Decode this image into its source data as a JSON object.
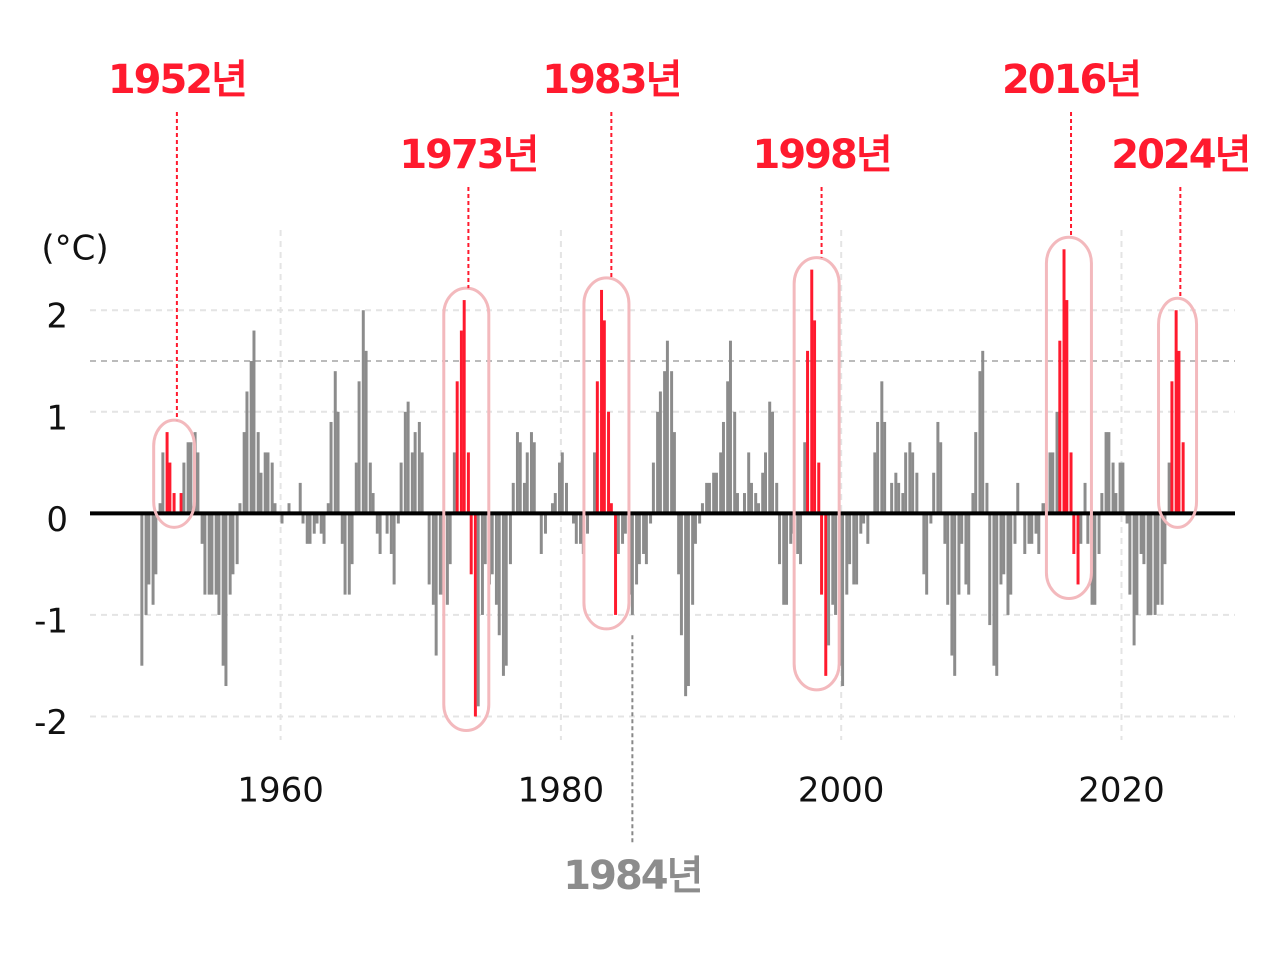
{
  "chart_data": {
    "type": "bar",
    "unit_label": "(°C)",
    "x": [
      1950.1,
      1950.4,
      1950.6,
      1950.9,
      1951.1,
      1951.4,
      1951.6,
      1951.9,
      1952.1,
      1952.4,
      1952.6,
      1952.9,
      1953.1,
      1953.4,
      1953.6,
      1953.9,
      1954.1,
      1954.4,
      1954.6,
      1954.9,
      1955.1,
      1955.4,
      1955.6,
      1955.9,
      1956.1,
      1956.4,
      1956.6,
      1956.9,
      1957.1,
      1957.4,
      1957.6,
      1957.9,
      1958.1,
      1958.4,
      1958.6,
      1958.9,
      1959.1,
      1959.4,
      1959.6,
      1959.9,
      1960.1,
      1960.4,
      1960.6,
      1960.9,
      1961.1,
      1961.4,
      1961.6,
      1961.9,
      1962.1,
      1962.4,
      1962.6,
      1962.9,
      1963.1,
      1963.4,
      1963.6,
      1963.9,
      1964.1,
      1964.4,
      1964.6,
      1964.9,
      1965.1,
      1965.4,
      1965.6,
      1965.9,
      1966.1,
      1966.4,
      1966.6,
      1966.9,
      1967.1,
      1967.4,
      1967.6,
      1967.9,
      1968.1,
      1968.4,
      1968.6,
      1968.9,
      1969.1,
      1969.4,
      1969.6,
      1969.9,
      1970.1,
      1970.4,
      1970.6,
      1970.9,
      1971.1,
      1971.4,
      1971.6,
      1971.9,
      1972.1,
      1972.4,
      1972.6,
      1972.9,
      1973.1,
      1973.4,
      1973.6,
      1973.9,
      1974.1,
      1974.4,
      1974.6,
      1974.9,
      1975.1,
      1975.4,
      1975.6,
      1975.9,
      1976.1,
      1976.4,
      1976.6,
      1976.9,
      1977.1,
      1977.4,
      1977.6,
      1977.9,
      1978.1,
      1978.4,
      1978.6,
      1978.9,
      1979.1,
      1979.4,
      1979.6,
      1979.9,
      1980.1,
      1980.4,
      1980.6,
      1980.9,
      1981.1,
      1981.4,
      1981.6,
      1981.9,
      1982.1,
      1982.4,
      1982.6,
      1982.9,
      1983.1,
      1983.4,
      1983.6,
      1983.9,
      1984.1,
      1984.4,
      1984.6,
      1984.9,
      1985.1,
      1985.4,
      1985.6,
      1985.9,
      1986.1,
      1986.4,
      1986.6,
      1986.9,
      1987.1,
      1987.4,
      1987.6,
      1987.9,
      1988.1,
      1988.4,
      1988.6,
      1988.9,
      1989.1,
      1989.4,
      1989.6,
      1989.9,
      1990.1,
      1990.4,
      1990.6,
      1990.9,
      1991.1,
      1991.4,
      1991.6,
      1991.9,
      1992.1,
      1992.4,
      1992.6,
      1992.9,
      1993.1,
      1993.4,
      1993.6,
      1993.9,
      1994.1,
      1994.4,
      1994.6,
      1994.9,
      1995.1,
      1995.4,
      1995.6,
      1995.9,
      1996.1,
      1996.4,
      1996.6,
      1996.9,
      1997.1,
      1997.4,
      1997.6,
      1997.9,
      1998.1,
      1998.4,
      1998.6,
      1998.9,
      1999.1,
      1999.4,
      1999.6,
      1999.9,
      2000.1,
      2000.4,
      2000.6,
      2000.9,
      2001.1,
      2001.4,
      2001.6,
      2001.9,
      2002.1,
      2002.4,
      2002.6,
      2002.9,
      2003.1,
      2003.4,
      2003.6,
      2003.9,
      2004.1,
      2004.4,
      2004.6,
      2004.9,
      2005.1,
      2005.4,
      2005.6,
      2005.9,
      2006.1,
      2006.4,
      2006.6,
      2006.9,
      2007.1,
      2007.4,
      2007.6,
      2007.9,
      2008.1,
      2008.4,
      2008.6,
      2008.9,
      2009.1,
      2009.4,
      2009.6,
      2009.9,
      2010.1,
      2010.4,
      2010.6,
      2010.9,
      2011.1,
      2011.4,
      2011.6,
      2011.9,
      2012.1,
      2012.4,
      2012.6,
      2012.9,
      2013.1,
      2013.4,
      2013.6,
      2013.9,
      2014.1,
      2014.4,
      2014.6,
      2014.9,
      2015.1,
      2015.4,
      2015.6,
      2015.9,
      2016.1,
      2016.4,
      2016.6,
      2016.9,
      2017.1,
      2017.4,
      2017.6,
      2017.9,
      2018.1,
      2018.4,
      2018.6,
      2018.9,
      2019.1,
      2019.4,
      2019.6,
      2019.9,
      2020.1,
      2020.4,
      2020.6,
      2020.9,
      2021.1,
      2021.4,
      2021.6,
      2021.9,
      2022.1,
      2022.4,
      2022.6,
      2022.9,
      2023.1,
      2023.4,
      2023.6,
      2023.9,
      2024.1,
      2024.4
    ],
    "values": [
      -1.5,
      -1.0,
      -0.7,
      -0.9,
      -0.6,
      0.1,
      0.6,
      0.8,
      0.5,
      0.2,
      0.0,
      0.2,
      0.5,
      0.7,
      0.7,
      0.8,
      0.6,
      -0.3,
      -0.8,
      -0.8,
      -0.8,
      -0.8,
      -1.0,
      -1.5,
      -1.7,
      -0.8,
      -0.6,
      -0.5,
      0.1,
      0.8,
      1.2,
      1.5,
      1.8,
      0.8,
      0.4,
      0.6,
      0.6,
      0.5,
      0.1,
      0.0,
      -0.1,
      0.0,
      0.1,
      0.0,
      0.0,
      0.3,
      -0.1,
      -0.3,
      -0.3,
      -0.2,
      -0.1,
      -0.2,
      -0.3,
      0.1,
      0.9,
      1.4,
      1.0,
      -0.3,
      -0.8,
      -0.8,
      -0.5,
      0.5,
      1.3,
      2.0,
      1.6,
      0.5,
      0.2,
      -0.2,
      -0.4,
      0.0,
      -0.2,
      -0.4,
      -0.7,
      -0.1,
      0.5,
      1.0,
      1.1,
      0.6,
      0.8,
      0.9,
      0.6,
      0.0,
      -0.7,
      -0.9,
      -1.4,
      -0.8,
      -0.8,
      -0.9,
      -0.5,
      0.6,
      1.3,
      1.8,
      2.1,
      0.6,
      -0.6,
      -2.0,
      -1.9,
      -1.0,
      -0.5,
      -0.7,
      -0.6,
      -0.9,
      -1.2,
      -1.6,
      -1.5,
      -0.5,
      0.3,
      0.8,
      0.7,
      0.3,
      0.6,
      0.8,
      0.7,
      0.0,
      -0.4,
      -0.2,
      0.0,
      0.1,
      0.2,
      0.5,
      0.6,
      0.3,
      0.0,
      -0.1,
      -0.3,
      -0.3,
      -0.4,
      -0.2,
      0.0,
      0.6,
      1.3,
      2.2,
      1.9,
      1.0,
      0.1,
      -1.0,
      -0.4,
      -0.3,
      -0.2,
      -0.8,
      -1.0,
      -0.7,
      -0.5,
      -0.4,
      -0.5,
      -0.1,
      0.5,
      1.0,
      1.2,
      1.4,
      1.7,
      1.4,
      0.8,
      -0.6,
      -1.2,
      -1.8,
      -1.7,
      -0.9,
      -0.3,
      -0.1,
      0.1,
      0.3,
      0.3,
      0.4,
      0.4,
      0.6,
      0.9,
      1.3,
      1.7,
      1.0,
      0.2,
      0.0,
      0.2,
      0.6,
      0.3,
      0.2,
      0.1,
      0.4,
      0.6,
      1.1,
      1.0,
      0.3,
      -0.5,
      -0.9,
      -0.9,
      -0.3,
      -0.2,
      -0.4,
      -0.5,
      0.7,
      1.6,
      2.4,
      1.9,
      0.5,
      -0.8,
      -1.6,
      -1.3,
      -0.9,
      -1.0,
      -1.5,
      -1.7,
      -0.8,
      -0.5,
      -0.7,
      -0.7,
      -0.2,
      -0.1,
      -0.3,
      0.0,
      0.6,
      0.9,
      1.3,
      0.9,
      0.0,
      0.3,
      0.4,
      0.3,
      0.2,
      0.6,
      0.7,
      0.6,
      0.4,
      0.0,
      -0.6,
      -0.8,
      -0.1,
      0.4,
      0.9,
      0.7,
      -0.3,
      -0.9,
      -1.4,
      -1.6,
      -0.8,
      -0.3,
      -0.7,
      -0.8,
      0.2,
      0.8,
      1.4,
      1.6,
      0.3,
      -1.1,
      -1.5,
      -1.6,
      -0.7,
      -0.6,
      -1.0,
      -0.8,
      -0.3,
      0.3,
      0.0,
      -0.4,
      -0.3,
      -0.3,
      -0.2,
      -0.4,
      0.1,
      0.1,
      0.6,
      0.6,
      1.0,
      1.7,
      2.6,
      2.1,
      0.6,
      -0.4,
      -0.7,
      -0.3,
      0.3,
      -0.3,
      -0.9,
      -0.9,
      -0.4,
      0.2,
      0.8,
      0.8,
      0.5,
      0.2,
      0.5,
      0.5,
      -0.1,
      -0.8,
      -1.3,
      -1.0,
      -0.4,
      -0.5,
      -1.0,
      -1.0,
      -1.0,
      -0.9,
      -0.9,
      -0.5,
      0.5,
      1.3,
      2.0,
      1.6,
      0.7
    ],
    "color": "#8c8c8c",
    "highlight_color": "#ff1a2e",
    "xlim": [
      1946.4,
      2028.1
    ],
    "ylim": [
      -2.33,
      2.79
    ],
    "xticks": [
      1960,
      1980,
      2000,
      2020
    ],
    "yticks": [
      -2,
      -1,
      0,
      1,
      2
    ],
    "reference_line": 1.5,
    "grid": true,
    "annotations": [
      {
        "label": "1952년",
        "x": 1952.6,
        "range": [
          1951.8,
          1953.0
        ]
      },
      {
        "label": "1973년",
        "x": 1973.4,
        "range": [
          1972.5,
          1974.0
        ]
      },
      {
        "label": "1983년",
        "x": 1983.6,
        "range": [
          1982.5,
          1984.0
        ]
      },
      {
        "label": "1998년",
        "x": 1998.6,
        "range": [
          1997.5,
          1999.0
        ]
      },
      {
        "label": "2016년",
        "x": 2016.4,
        "range": [
          2015.5,
          2017.0
        ]
      },
      {
        "label": "2024년",
        "x": 2024.2,
        "range": [
          2023.5,
          2024.5
        ]
      }
    ],
    "below_annotation": {
      "label": "1984년",
      "x": 1985.1
    }
  }
}
